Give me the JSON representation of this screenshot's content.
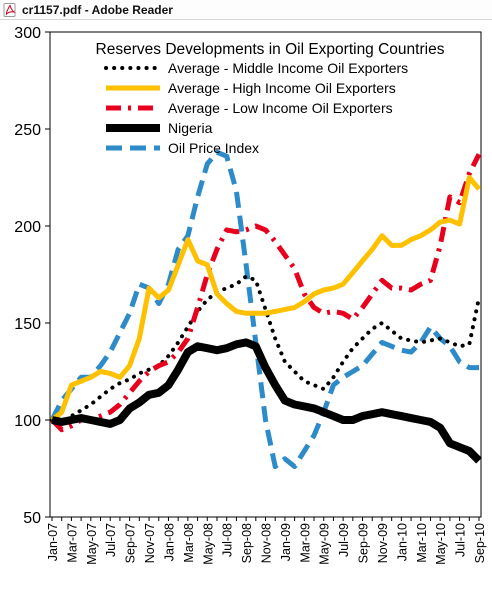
{
  "window": {
    "title": "cr1157.pdf - Adobe Reader",
    "icon": "pdf-file-icon",
    "accent": "#c8102e"
  },
  "chart_data": {
    "type": "line",
    "title": "Reserves  Developments in Oil Exporting Countries",
    "xlabel": "",
    "ylabel": "",
    "ylim": [
      50,
      300
    ],
    "yticks": [
      "50",
      "100",
      "150",
      "200",
      "250",
      "300"
    ],
    "grid": false,
    "legend_position": "top",
    "x": [
      "Jan-07",
      "Feb-07",
      "Mar-07",
      "Apr-07",
      "May-07",
      "Jun-07",
      "Jul-07",
      "Aug-07",
      "Sep-07",
      "Oct-07",
      "Nov-07",
      "Dec-07",
      "Jan-08",
      "Feb-08",
      "Mar-08",
      "Apr-08",
      "May-08",
      "Jun-08",
      "Jul-08",
      "Aug-08",
      "Sep-08",
      "Oct-08",
      "Nov-08",
      "Dec-08",
      "Jan-09",
      "Feb-09",
      "Mar-09",
      "Apr-09",
      "May-09",
      "Jun-09",
      "Jul-09",
      "Aug-09",
      "Sep-09",
      "Oct-09",
      "Nov-09",
      "Dec-09",
      "Jan-10",
      "Feb-10",
      "Mar-10",
      "Apr-10",
      "May-10",
      "Jun-10",
      "Jul-10",
      "Aug-10",
      "Sep-10"
    ],
    "xtick_labels": [
      "Jan-07",
      "Mar-07",
      "May-07",
      "Jul-07",
      "Sep-07",
      "Nov-07",
      "Jan-08",
      "Mar-08",
      "May-08",
      "Jul-08",
      "Sep-08",
      "Nov-08",
      "Jan-09",
      "Mar-09",
      "May-09",
      "Jul-09",
      "Sep-09",
      "Nov-09",
      "Jan-10",
      "Mar-10",
      "May-10",
      "Jul-10",
      "Sep-10"
    ],
    "series": [
      {
        "name": "Average - Middle Income Oil Exporters",
        "color": "#000000",
        "style": "dotted",
        "values": [
          100,
          98,
          102,
          105,
          108,
          112,
          116,
          119,
          121,
          124,
          126,
          128,
          133,
          140,
          148,
          156,
          162,
          166,
          168,
          170,
          174,
          172,
          157,
          142,
          130,
          125,
          120,
          118,
          116,
          122,
          130,
          137,
          142,
          147,
          150,
          146,
          142,
          141,
          140,
          141,
          142,
          140,
          138,
          139,
          163
        ]
      },
      {
        "name": "Average - High Income Oil Exporters",
        "color": "#ffc000",
        "style": "solid",
        "values": [
          100,
          104,
          118,
          120,
          122,
          125,
          124,
          122,
          128,
          142,
          168,
          163,
          167,
          180,
          193,
          182,
          180,
          165,
          160,
          156,
          155,
          155,
          155,
          156,
          157,
          158,
          161,
          165,
          167,
          168,
          170,
          176,
          182,
          188,
          195,
          190,
          190,
          193,
          195,
          198,
          202,
          203,
          201,
          225,
          219
        ]
      },
      {
        "name": "Average - Low Income Oil Exporters",
        "color": "#e8001c",
        "style": "dashdot",
        "values": [
          100,
          95,
          97,
          100,
          100,
          102,
          104,
          108,
          114,
          120,
          125,
          128,
          130,
          135,
          142,
          158,
          175,
          188,
          198,
          197,
          198,
          200,
          198,
          192,
          185,
          178,
          165,
          158,
          155,
          156,
          155,
          152,
          158,
          165,
          172,
          168,
          168,
          167,
          170,
          172,
          190,
          215,
          212,
          227,
          237
        ]
      },
      {
        "name": "Nigeria",
        "color": "#000000",
        "style": "solid-thick",
        "values": [
          100,
          99,
          100,
          101,
          100,
          99,
          98,
          100,
          106,
          109,
          113,
          114,
          118,
          126,
          135,
          138,
          137,
          136,
          137,
          139,
          140,
          138,
          127,
          118,
          110,
          108,
          107,
          106,
          104,
          102,
          100,
          100,
          102,
          103,
          104,
          103,
          102,
          101,
          100,
          99,
          96,
          88,
          86,
          84,
          79
        ]
      },
      {
        "name": "Oil Price Index",
        "color": "#2e8bc9",
        "style": "dashed",
        "values": [
          100,
          110,
          116,
          122,
          122,
          128,
          135,
          145,
          155,
          170,
          168,
          160,
          170,
          188,
          195,
          215,
          232,
          238,
          236,
          218,
          180,
          140,
          100,
          76,
          80,
          76,
          84,
          92,
          104,
          118,
          122,
          125,
          128,
          134,
          140,
          138,
          136,
          135,
          140,
          148,
          142,
          138,
          130,
          127,
          127
        ]
      }
    ]
  }
}
